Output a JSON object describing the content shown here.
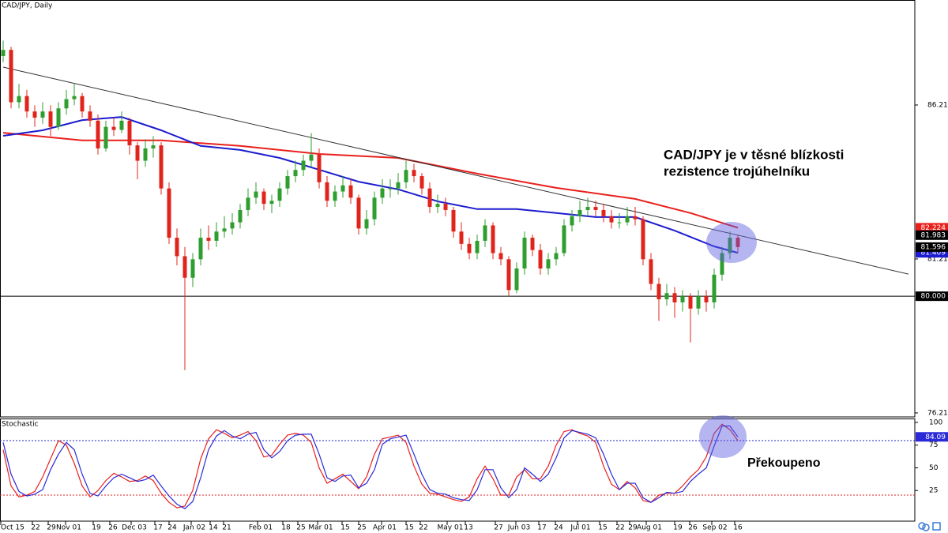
{
  "chart_data": [
    {
      "type": "candlestick",
      "title": "CAD/JPY, Daily",
      "annotation": [
        "CAD/JPY je v těsné blízkosti",
        "rezistence trojúhelníku"
      ],
      "ylim": [
        76.08,
        89.62
      ],
      "yticks": [
        {
          "value": 86.21,
          "label": "86.210"
        },
        {
          "value": 81.21,
          "label": "81.210"
        },
        {
          "value": 76.21,
          "label": "76.210"
        }
      ],
      "up_color": "#2e9e2e",
      "down_color": "#e0241b",
      "x_labels": [
        "Oct 15",
        "22",
        "29",
        "Nov 01",
        "19",
        "26",
        "Dec 03",
        "17",
        "24",
        "Jan 02",
        "14",
        "21",
        "Feb 01",
        "18",
        "25",
        "Mar 01",
        "15",
        "25",
        "Apr 01",
        "15",
        "22",
        "May 01",
        "13",
        "27",
        "Jun 03",
        "17",
        "24",
        "Jul 01",
        "15",
        "22",
        "29",
        "Aug 01",
        "19",
        "26",
        "Sep 02",
        "16"
      ],
      "ohlc": [
        [
          87.8,
          88.3,
          87.6,
          88.0
        ],
        [
          88.0,
          88.1,
          86.1,
          86.3
        ],
        [
          86.3,
          86.9,
          86.1,
          86.5
        ],
        [
          86.5,
          86.7,
          85.8,
          86.0
        ],
        [
          86.0,
          86.2,
          85.5,
          85.8
        ],
        [
          85.8,
          86.3,
          85.6,
          86.0
        ],
        [
          86.0,
          86.2,
          85.2,
          85.5
        ],
        [
          85.5,
          86.3,
          85.4,
          86.1
        ],
        [
          86.1,
          86.7,
          85.9,
          86.4
        ],
        [
          86.4,
          86.9,
          86.2,
          86.5
        ],
        [
          86.5,
          86.6,
          85.8,
          86.0
        ],
        [
          86.0,
          86.2,
          85.5,
          85.7
        ],
        [
          85.7,
          85.9,
          84.6,
          84.8
        ],
        [
          84.8,
          85.7,
          84.7,
          85.5
        ],
        [
          85.5,
          85.8,
          85.2,
          85.4
        ],
        [
          85.4,
          86.0,
          85.3,
          85.7
        ],
        [
          85.7,
          85.8,
          84.6,
          84.9
        ],
        [
          84.9,
          85.0,
          83.8,
          84.4
        ],
        [
          84.4,
          85.1,
          84.2,
          84.8
        ],
        [
          84.8,
          85.2,
          84.5,
          84.9
        ],
        [
          84.9,
          85.0,
          83.3,
          83.5
        ],
        [
          83.5,
          83.7,
          81.7,
          81.9
        ],
        [
          81.9,
          82.2,
          81.0,
          81.3
        ],
        [
          81.3,
          81.6,
          77.6,
          80.6
        ],
        [
          80.6,
          81.4,
          80.3,
          81.2
        ],
        [
          81.2,
          82.2,
          81.0,
          81.9
        ],
        [
          81.9,
          82.3,
          81.5,
          81.8
        ],
        [
          81.8,
          82.4,
          81.6,
          82.1
        ],
        [
          82.1,
          82.6,
          81.9,
          82.2
        ],
        [
          82.2,
          82.7,
          82.0,
          82.4
        ],
        [
          82.4,
          83.0,
          82.2,
          82.8
        ],
        [
          82.8,
          83.5,
          82.6,
          83.2
        ],
        [
          83.2,
          83.7,
          83.0,
          83.4
        ],
        [
          83.4,
          83.5,
          82.8,
          83.0
        ],
        [
          83.0,
          83.3,
          82.7,
          83.1
        ],
        [
          83.1,
          83.7,
          82.9,
          83.5
        ],
        [
          83.5,
          84.1,
          83.3,
          83.9
        ],
        [
          83.9,
          84.4,
          83.7,
          84.1
        ],
        [
          84.1,
          84.6,
          83.9,
          84.4
        ],
        [
          84.4,
          85.3,
          84.2,
          84.6
        ],
        [
          84.6,
          84.8,
          83.5,
          83.7
        ],
        [
          83.7,
          83.9,
          82.9,
          83.1
        ],
        [
          83.1,
          83.6,
          82.9,
          83.4
        ],
        [
          83.4,
          83.9,
          83.2,
          83.6
        ],
        [
          83.6,
          83.8,
          83.0,
          83.2
        ],
        [
          83.2,
          83.3,
          82.0,
          82.2
        ],
        [
          82.2,
          82.8,
          82.0,
          82.5
        ],
        [
          82.5,
          83.4,
          82.3,
          83.2
        ],
        [
          83.2,
          83.8,
          83.0,
          83.5
        ],
        [
          83.5,
          83.8,
          83.2,
          83.5
        ],
        [
          83.5,
          84.0,
          83.3,
          83.7
        ],
        [
          83.7,
          84.4,
          83.5,
          84.1
        ],
        [
          84.1,
          84.3,
          83.7,
          83.9
        ],
        [
          83.9,
          84.0,
          83.3,
          83.5
        ],
        [
          83.5,
          83.7,
          82.7,
          82.9
        ],
        [
          82.9,
          83.3,
          82.7,
          83.0
        ],
        [
          83.0,
          83.2,
          82.6,
          82.8
        ],
        [
          82.8,
          82.9,
          81.9,
          82.1
        ],
        [
          82.1,
          82.4,
          81.5,
          81.7
        ],
        [
          81.7,
          81.9,
          81.2,
          81.4
        ],
        [
          81.4,
          82.0,
          81.2,
          81.8
        ],
        [
          81.8,
          82.5,
          81.6,
          82.3
        ],
        [
          82.3,
          82.4,
          81.2,
          81.4
        ],
        [
          81.4,
          81.6,
          81.0,
          81.2
        ],
        [
          81.2,
          81.3,
          80.0,
          80.2
        ],
        [
          80.2,
          81.1,
          80.1,
          80.9
        ],
        [
          80.9,
          82.1,
          80.7,
          81.9
        ],
        [
          81.9,
          82.0,
          81.3,
          81.5
        ],
        [
          81.5,
          81.7,
          80.7,
          80.9
        ],
        [
          80.9,
          81.4,
          80.7,
          81.2
        ],
        [
          81.2,
          81.6,
          81.0,
          81.4
        ],
        [
          81.4,
          82.5,
          81.3,
          82.3
        ],
        [
          82.3,
          82.8,
          82.1,
          82.6
        ],
        [
          82.6,
          83.1,
          82.4,
          82.8
        ],
        [
          82.8,
          83.2,
          82.6,
          82.9
        ],
        [
          82.9,
          83.1,
          82.6,
          82.8
        ],
        [
          82.8,
          83.0,
          82.4,
          82.6
        ],
        [
          82.6,
          82.8,
          82.2,
          82.4
        ],
        [
          82.4,
          82.7,
          82.2,
          82.4
        ],
        [
          82.4,
          82.9,
          82.3,
          82.6
        ],
        [
          82.6,
          82.9,
          82.3,
          82.5
        ],
        [
          82.5,
          82.6,
          81.0,
          81.2
        ],
        [
          81.2,
          81.4,
          80.2,
          80.4
        ],
        [
          80.4,
          80.6,
          79.2,
          79.9
        ],
        [
          79.9,
          80.4,
          79.7,
          80.1
        ],
        [
          80.1,
          80.3,
          79.3,
          79.8
        ],
        [
          79.8,
          80.2,
          79.5,
          80.0
        ],
        [
          80.0,
          80.1,
          78.5,
          79.6
        ],
        [
          79.6,
          80.2,
          79.4,
          80.0
        ],
        [
          80.0,
          80.2,
          79.5,
          79.8
        ],
        [
          79.8,
          80.9,
          79.6,
          80.7
        ],
        [
          80.7,
          81.6,
          80.5,
          81.4
        ],
        [
          81.4,
          82.1,
          81.2,
          81.9
        ],
        [
          81.9,
          82.0,
          81.4,
          81.596
        ]
      ],
      "lines": [
        {
          "color": "#e8201c",
          "x": [
            0,
            10,
            20,
            30,
            40,
            50,
            60,
            70,
            80,
            87,
            93
          ],
          "values": [
            85.31,
            85.06,
            85.06,
            84.88,
            84.62,
            84.49,
            83.98,
            83.52,
            83.16,
            82.7,
            82.224
          ]
        },
        {
          "color": "#1c1cd0",
          "x": [
            0,
            5,
            10,
            15,
            20,
            25,
            30,
            35,
            40,
            45,
            50,
            55,
            60,
            65,
            70,
            75,
            80,
            85,
            90,
            93
          ],
          "values": [
            85.21,
            85.39,
            85.72,
            85.82,
            85.39,
            84.88,
            84.75,
            84.49,
            84.11,
            83.72,
            83.47,
            83.08,
            82.83,
            82.83,
            82.7,
            82.57,
            82.57,
            82.13,
            81.62,
            81.409
          ]
        },
        {
          "color": "#333333",
          "x": [
            0,
            93,
            114.6
          ],
          "values": [
            87.44,
            81.983,
            80.72
          ]
        }
      ],
      "hline": {
        "value": 80,
        "label": "80.000",
        "color": "#000000"
      }
    },
    {
      "type": "line",
      "title": "Stochastic",
      "annotation": "Překoupeno",
      "ylim": [
        -8.7,
        104.3
      ],
      "yticks": [
        25,
        50,
        75,
        100
      ],
      "levels": [
        {
          "value": 80,
          "color": "#2222cc"
        },
        {
          "value": 20,
          "color": "#dd2222"
        }
      ],
      "series": [
        {
          "color": "#e8201c",
          "values": [
            70,
            30,
            18,
            20,
            24,
            40,
            60,
            80,
            75,
            55,
            30,
            18,
            25,
            36,
            44,
            40,
            35,
            36,
            41,
            36,
            22,
            12,
            6,
            8,
            25,
            60,
            82,
            92,
            88,
            83,
            86,
            90,
            80,
            62,
            64,
            76,
            86,
            88,
            86,
            78,
            50,
            33,
            38,
            43,
            35,
            27,
            40,
            65,
            82,
            84,
            86,
            78,
            52,
            32,
            22,
            21,
            18,
            15,
            13,
            18,
            38,
            52,
            38,
            20,
            20,
            40,
            48,
            38,
            38,
            52,
            75,
            90,
            92,
            88,
            85,
            78,
            52,
            32,
            26,
            35,
            28,
            14,
            12,
            20,
            22,
            22,
            30,
            40,
            48,
            62,
            88,
            98,
            92,
            80
          ]
        },
        {
          "color": "#2a2ad8",
          "values": [
            78,
            43,
            24,
            19,
            21,
            26,
            48,
            65,
            78,
            70,
            43,
            22,
            19,
            30,
            39,
            43,
            39,
            35,
            37,
            42,
            30,
            19,
            10,
            5,
            13,
            39,
            70,
            85,
            91,
            85,
            82,
            87,
            89,
            70,
            61,
            68,
            80,
            86,
            87,
            87,
            65,
            39,
            35,
            41,
            42,
            28,
            33,
            48,
            76,
            82,
            84,
            86,
            65,
            43,
            26,
            22,
            21,
            17,
            15,
            14,
            26,
            48,
            48,
            28,
            17,
            26,
            50,
            43,
            35,
            43,
            61,
            83,
            91,
            89,
            87,
            83,
            65,
            43,
            26,
            33,
            33,
            17,
            12,
            17,
            23,
            22,
            24,
            35,
            43,
            50,
            74,
            96,
            96,
            84.09
          ]
        }
      ]
    }
  ]
}
